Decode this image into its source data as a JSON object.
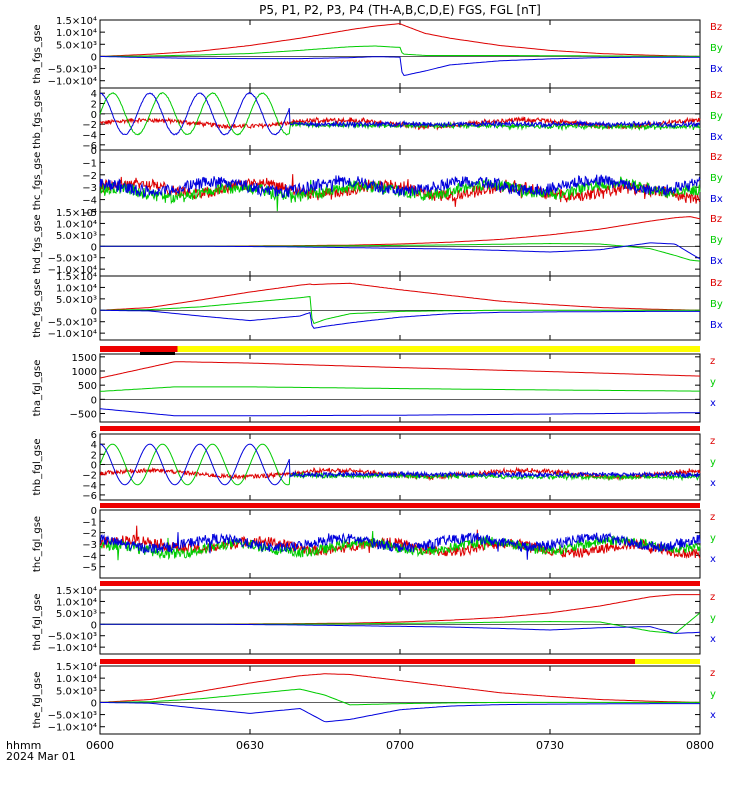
{
  "title": "P5, P1, P2, P3, P4 (TH-A,B,C,D,E) FGS, FGL [nT]",
  "footer": {
    "line1": "hhmm",
    "line2": "2024 Mar 01"
  },
  "x_axis": {
    "ticks": [
      {
        "t": 0,
        "label": "0600"
      },
      {
        "t": 30,
        "label": "0630"
      },
      {
        "t": 60,
        "label": "0700"
      },
      {
        "t": 90,
        "label": "0730"
      },
      {
        "t": 120,
        "label": "0800"
      }
    ]
  },
  "colors": {
    "z": "#dd0000",
    "y": "#00cc00",
    "x": "#0000dd",
    "bar_red": "#ee0000",
    "bar_yellow": "#ffff00",
    "bar_black": "#000000"
  },
  "panels": [
    {
      "ylabel": "tha_fgs_gse",
      "ylim": [
        -13000,
        15000
      ],
      "ticks": [
        {
          "v": 15000,
          "label": "1.5×10⁴"
        },
        {
          "v": 10000,
          "label": "1.0×10⁴"
        },
        {
          "v": 5000,
          "label": "5.0×10³"
        },
        {
          "v": 0,
          "label": "0"
        },
        {
          "v": -5000,
          "label": "−5.0×10³"
        },
        {
          "v": -10000,
          "label": "−1.0×10⁴"
        }
      ],
      "legend": [
        "Bz",
        "By",
        "Bx"
      ]
    },
    {
      "ylabel": "thb_fgs_gse",
      "ylim": [
        -7,
        5
      ],
      "ticks": [
        {
          "v": 4,
          "label": "4"
        },
        {
          "v": 2,
          "label": "2"
        },
        {
          "v": 0,
          "label": "0"
        },
        {
          "v": -2,
          "label": "−2"
        },
        {
          "v": -4,
          "label": "−4"
        },
        {
          "v": -6,
          "label": "−6"
        }
      ],
      "legend": [
        "Bz",
        "By",
        "Bx"
      ]
    },
    {
      "ylabel": "thc_fgs_gse",
      "ylim": [
        -5,
        0
      ],
      "ticks": [
        {
          "v": 0,
          "label": "0"
        },
        {
          "v": -1,
          "label": "−1"
        },
        {
          "v": -2,
          "label": "−2"
        },
        {
          "v": -3,
          "label": "−3"
        },
        {
          "v": -4,
          "label": "−4"
        },
        {
          "v": -5,
          "label": "−5"
        }
      ],
      "legend": [
        "Bz",
        "By",
        "Bx"
      ]
    },
    {
      "ylabel": "thd_fgs_gse",
      "ylim": [
        -13000,
        15000
      ],
      "ticks": [
        {
          "v": 15000,
          "label": "1.5×10⁴"
        },
        {
          "v": 10000,
          "label": "1.0×10⁴"
        },
        {
          "v": 5000,
          "label": "5.0×10³"
        },
        {
          "v": 0,
          "label": "0"
        },
        {
          "v": -5000,
          "label": "−5.0×10³"
        },
        {
          "v": -10000,
          "label": "−1.0×10⁴"
        }
      ],
      "legend": [
        "Bz",
        "By",
        "Bx"
      ]
    },
    {
      "ylabel": "the_fgs_gse",
      "ylim": [
        -13000,
        15000
      ],
      "ticks": [
        {
          "v": 15000,
          "label": "1.5×10⁴"
        },
        {
          "v": 10000,
          "label": "1.0×10⁴"
        },
        {
          "v": 5000,
          "label": "5.0×10³"
        },
        {
          "v": 0,
          "label": "0"
        },
        {
          "v": -5000,
          "label": "−5.0×10³"
        },
        {
          "v": -10000,
          "label": "−1.0×10⁴"
        }
      ],
      "legend": [
        "Bz",
        "By",
        "Bx"
      ]
    },
    {
      "ylabel": "tha_fgl_gse",
      "ylim": [
        -800,
        1600
      ],
      "ticks": [
        {
          "v": 1500,
          "label": "1500"
        },
        {
          "v": 1000,
          "label": "1000"
        },
        {
          "v": 500,
          "label": "500"
        },
        {
          "v": 0,
          "label": "0"
        },
        {
          "v": -500,
          "label": "−500"
        }
      ],
      "legend": [
        "z",
        "y",
        "x"
      ]
    },
    {
      "ylabel": "thb_fgl_gse",
      "ylim": [
        -7,
        6
      ],
      "ticks": [
        {
          "v": 6,
          "label": "6"
        },
        {
          "v": 4,
          "label": "4"
        },
        {
          "v": 2,
          "label": "2"
        },
        {
          "v": 0,
          "label": "0"
        },
        {
          "v": -2,
          "label": "−2"
        },
        {
          "v": -4,
          "label": "−4"
        },
        {
          "v": -6,
          "label": "−6"
        }
      ],
      "legend": [
        "z",
        "y",
        "x"
      ]
    },
    {
      "ylabel": "thc_fgl_gse",
      "ylim": [
        -6,
        0
      ],
      "ticks": [
        {
          "v": 0,
          "label": "0"
        },
        {
          "v": -1,
          "label": "−1"
        },
        {
          "v": -2,
          "label": "−2"
        },
        {
          "v": -3,
          "label": "−3"
        },
        {
          "v": -4,
          "label": "−4"
        },
        {
          "v": -5,
          "label": "−5"
        }
      ],
      "legend": [
        "z",
        "y",
        "x"
      ]
    },
    {
      "ylabel": "thd_fgl_gse",
      "ylim": [
        -13000,
        15000
      ],
      "ticks": [
        {
          "v": 15000,
          "label": "1.5×10⁴"
        },
        {
          "v": 10000,
          "label": "1.0×10⁴"
        },
        {
          "v": 5000,
          "label": "5.0×10³"
        },
        {
          "v": 0,
          "label": "0"
        },
        {
          "v": -5000,
          "label": "−5.0×10³"
        },
        {
          "v": -10000,
          "label": "−1.0×10⁴"
        }
      ],
      "legend": [
        "z",
        "y",
        "x"
      ]
    },
    {
      "ylabel": "the_fgl_gse",
      "ylim": [
        -13000,
        15000
      ],
      "ticks": [
        {
          "v": 15000,
          "label": "1.5×10⁴"
        },
        {
          "v": 10000,
          "label": "1.0×10⁴"
        },
        {
          "v": 5000,
          "label": "5.0×10³"
        },
        {
          "v": 0,
          "label": "0"
        },
        {
          "v": -5000,
          "label": "−5.0×10³"
        },
        {
          "v": -10000,
          "label": "−1.0×10⁴"
        }
      ],
      "legend": [
        "z",
        "y",
        "x"
      ]
    }
  ],
  "bars": [
    {
      "segments": [
        {
          "t0": 0,
          "t1": 15.5,
          "color": "red"
        },
        {
          "t0": 15.5,
          "t1": 120,
          "color": "yellow"
        }
      ],
      "marker": {
        "t0": 8,
        "t1": 15
      }
    },
    {
      "segments": [
        {
          "t0": 0,
          "t1": 120,
          "color": "red"
        }
      ]
    },
    {
      "segments": [
        {
          "t0": 0,
          "t1": 120,
          "color": "red"
        }
      ]
    },
    {
      "segments": [
        {
          "t0": 0,
          "t1": 120,
          "color": "red"
        }
      ]
    },
    {
      "segments": [
        {
          "t0": 0,
          "t1": 107,
          "color": "red"
        },
        {
          "t0": 107,
          "t1": 120,
          "color": "yellow"
        }
      ]
    }
  ],
  "chart_data": [
    {
      "type": "line",
      "title": "P5, P1, P2, P3, P4 (TH-A,B,C,D,E) FGS, FGL [nT]",
      "ylabel": "tha_fgs_gse",
      "xlabel": "hhmm",
      "ylim": [
        -13000,
        15000
      ],
      "x": [
        0,
        10,
        20,
        30,
        40,
        50,
        55,
        60,
        60.5,
        65,
        70,
        80,
        90,
        100,
        110,
        120
      ],
      "series": [
        {
          "name": "Bz",
          "values": [
            0,
            900,
            2200,
            4500,
            7500,
            11000,
            12500,
            13500,
            13000,
            9500,
            7500,
            4500,
            2500,
            1200,
            500,
            0
          ]
        },
        {
          "name": "By",
          "values": [
            0,
            200,
            600,
            1200,
            2500,
            4000,
            4300,
            3700,
            1000,
            400,
            400,
            400,
            300,
            200,
            100,
            0
          ]
        },
        {
          "name": "Bx",
          "values": [
            0,
            -500,
            -800,
            -900,
            -900,
            -500,
            -100,
            -300,
            -8000,
            -6000,
            -3500,
            -1800,
            -1000,
            -500,
            -300,
            -300
          ]
        }
      ]
    },
    {
      "type": "line",
      "ylabel": "thb_fgs_gse",
      "ylim": [
        -7,
        5
      ],
      "x": [
        0,
        120
      ],
      "series": [
        {
          "name": "Bz",
          "values": [
            -2,
            -3
          ]
        },
        {
          "name": "By",
          "values": [
            -2,
            -2.5
          ]
        },
        {
          "name": "Bx",
          "values": [
            -2,
            -2
          ]
        }
      ]
    },
    {
      "type": "line",
      "ylabel": "thc_fgs_gse",
      "ylim": [
        -5,
        0
      ],
      "x": [
        0,
        120
      ],
      "series": [
        {
          "name": "Bz",
          "values": [
            -3,
            -3.5
          ]
        },
        {
          "name": "By",
          "values": [
            -3.5,
            -3
          ]
        },
        {
          "name": "Bx",
          "values": [
            -3,
            -2.8
          ]
        }
      ]
    },
    {
      "type": "line",
      "ylabel": "thd_fgs_gse",
      "ylim": [
        -13000,
        15000
      ],
      "x": [
        0,
        10,
        20,
        30,
        40,
        50,
        60,
        70,
        80,
        90,
        100,
        110,
        115,
        118,
        120
      ],
      "series": [
        {
          "name": "Bz",
          "values": [
            0,
            0,
            50,
            150,
            300,
            500,
            1000,
            1800,
            3000,
            5000,
            7500,
            11000,
            12500,
            13000,
            12000
          ]
        },
        {
          "name": "By",
          "values": [
            0,
            0,
            0,
            50,
            100,
            200,
            400,
            600,
            900,
            1200,
            1000,
            -1000,
            -4000,
            -6000,
            -6500
          ]
        },
        {
          "name": "Bx",
          "values": [
            0,
            0,
            0,
            -100,
            -300,
            -600,
            -900,
            -1200,
            -1800,
            -2500,
            -1500,
            1500,
            1000,
            -3000,
            -5500
          ]
        }
      ]
    },
    {
      "type": "line",
      "ylabel": "the_fgs_gse",
      "ylim": [
        -13000,
        15000
      ],
      "x": [
        0,
        10,
        20,
        30,
        40,
        42,
        42.5,
        45,
        50,
        60,
        70,
        80,
        90,
        100,
        110,
        120
      ],
      "series": [
        {
          "name": "Bz",
          "values": [
            0,
            1200,
            4500,
            8000,
            11000,
            11500,
            11200,
            11500,
            11800,
            9000,
            6500,
            4000,
            2500,
            1200,
            500,
            0
          ]
        },
        {
          "name": "By",
          "values": [
            0,
            300,
            1500,
            3500,
            5500,
            6000,
            -6000,
            -4000,
            -1500,
            -500,
            -200,
            0,
            0,
            0,
            0,
            0
          ]
        },
        {
          "name": "Bx",
          "values": [
            0,
            -300,
            -2500,
            -4500,
            -2500,
            -1000,
            -8000,
            -7000,
            -5500,
            -3000,
            -1500,
            -900,
            -700,
            -600,
            -500,
            -500
          ]
        }
      ]
    },
    {
      "type": "line",
      "ylabel": "tha_fgl_gse",
      "ylim": [
        -800,
        1600
      ],
      "x": [
        0,
        15,
        30,
        60,
        90,
        120
      ],
      "series": [
        {
          "name": "z",
          "values": [
            750,
            1330,
            1280,
            1120,
            980,
            820
          ]
        },
        {
          "name": "y",
          "values": [
            280,
            440,
            440,
            380,
            330,
            290
          ]
        },
        {
          "name": "x",
          "values": [
            -330,
            -580,
            -580,
            -560,
            -520,
            -470
          ]
        }
      ]
    },
    {
      "type": "line",
      "ylabel": "thb_fgl_gse",
      "ylim": [
        -7,
        6
      ],
      "x": [
        0,
        120
      ],
      "series": [
        {
          "name": "z",
          "values": [
            -2,
            -3
          ]
        },
        {
          "name": "y",
          "values": [
            -2,
            -2.5
          ]
        },
        {
          "name": "x",
          "values": [
            -2,
            -2
          ]
        }
      ]
    },
    {
      "type": "line",
      "ylabel": "thc_fgl_gse",
      "ylim": [
        -6,
        0
      ],
      "x": [
        0,
        120
      ],
      "series": [
        {
          "name": "z",
          "values": [
            -3,
            -3.5
          ]
        },
        {
          "name": "y",
          "values": [
            -3.5,
            -3
          ]
        },
        {
          "name": "x",
          "values": [
            -3,
            -2.8
          ]
        }
      ]
    },
    {
      "type": "line",
      "ylabel": "thd_fgl_gse",
      "ylim": [
        -13000,
        15000
      ],
      "x": [
        0,
        10,
        20,
        30,
        40,
        50,
        60,
        70,
        80,
        90,
        100,
        110,
        115,
        120
      ],
      "series": [
        {
          "name": "z",
          "values": [
            0,
            0,
            50,
            150,
            300,
            500,
            1000,
            1800,
            3000,
            5000,
            8000,
            12000,
            13000,
            13000
          ]
        },
        {
          "name": "y",
          "values": [
            0,
            0,
            0,
            50,
            100,
            200,
            400,
            600,
            900,
            1200,
            1000,
            -3000,
            -4000,
            5000
          ]
        },
        {
          "name": "x",
          "values": [
            0,
            0,
            0,
            -100,
            -300,
            -600,
            -900,
            -1200,
            -1800,
            -2500,
            -1500,
            -1000,
            -4000,
            -3500
          ]
        }
      ]
    },
    {
      "type": "line",
      "ylabel": "the_fgl_gse",
      "ylim": [
        -13000,
        15000
      ],
      "x": [
        0,
        10,
        20,
        30,
        40,
        45,
        50,
        60,
        70,
        80,
        90,
        100,
        110,
        120
      ],
      "series": [
        {
          "name": "z",
          "values": [
            0,
            1200,
            4500,
            8000,
            11000,
            11800,
            11500,
            9000,
            6500,
            4000,
            2500,
            1200,
            500,
            0
          ]
        },
        {
          "name": "y",
          "values": [
            0,
            300,
            1500,
            3500,
            5500,
            3000,
            -1000,
            -500,
            -200,
            0,
            0,
            0,
            0,
            0
          ]
        },
        {
          "name": "x",
          "values": [
            0,
            -300,
            -2500,
            -4500,
            -2500,
            -8000,
            -7000,
            -3000,
            -1500,
            -900,
            -700,
            -600,
            -500,
            -500
          ]
        }
      ]
    }
  ]
}
